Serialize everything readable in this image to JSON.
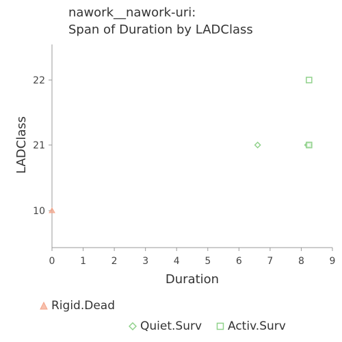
{
  "chart_data": {
    "type": "scatter",
    "title": [
      "nawork__nawork-uri:",
      "Span of Duration by LADClass"
    ],
    "xlabel": "Duration",
    "ylabel": "LADClass",
    "xlim": [
      0,
      9
    ],
    "x_ticks": [
      "0",
      "1",
      "2",
      "3",
      "4",
      "5",
      "6",
      "7",
      "8",
      "9"
    ],
    "y_categories": [
      "10",
      "21",
      "22"
    ],
    "grid": false,
    "legend_placement": "bottom",
    "series": [
      {
        "name": "Rigid.Dead",
        "marker": "triangle",
        "color": "#f4a58a",
        "points": [
          {
            "x": 0,
            "y": "10"
          }
        ]
      },
      {
        "name": "Quiet.Surv",
        "marker": "diamond",
        "color": "#8fd18a",
        "points": [
          {
            "x": 6.6,
            "y": "21"
          },
          {
            "x": 8.2,
            "y": "21"
          },
          {
            "x": 8.25,
            "y": "21"
          }
        ]
      },
      {
        "name": "Activ.Surv",
        "marker": "square",
        "color": "#8fd18a",
        "points": [
          {
            "x": 8.25,
            "y": "22"
          },
          {
            "x": 8.25,
            "y": "21"
          }
        ]
      }
    ]
  }
}
